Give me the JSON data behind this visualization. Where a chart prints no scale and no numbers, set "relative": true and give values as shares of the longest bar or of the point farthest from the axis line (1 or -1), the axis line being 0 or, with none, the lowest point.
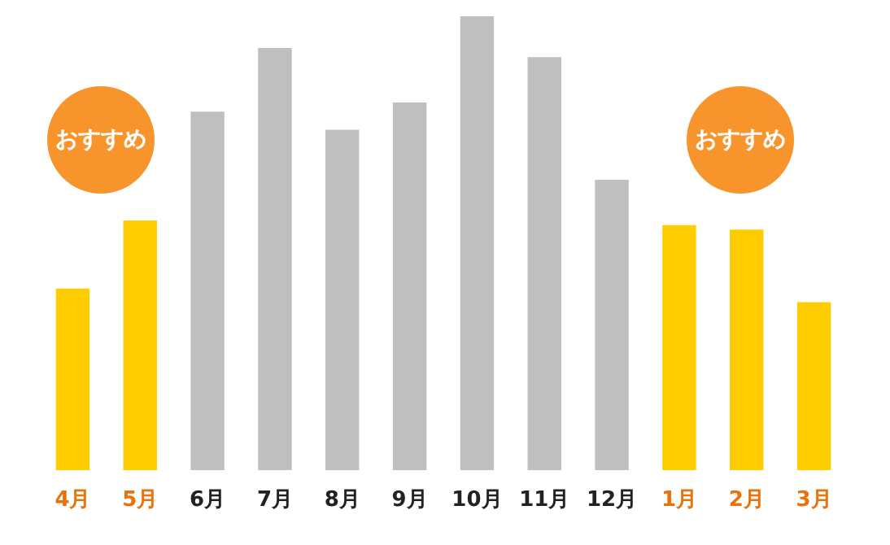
{
  "chart_data": {
    "type": "bar",
    "relative": true,
    "categories": [
      "4月",
      "5月",
      "6月",
      "7月",
      "8月",
      "9月",
      "10月",
      "11月",
      "12月",
      "1月",
      "2月",
      "3月"
    ],
    "values": [
      0.4,
      0.55,
      0.79,
      0.93,
      0.75,
      0.81,
      1,
      0.91,
      0.64,
      0.54,
      0.53,
      0.37
    ],
    "colors": [
      "#ffcc00",
      "#ffcc00",
      "#bfbfbf",
      "#bfbfbf",
      "#bfbfbf",
      "#bfbfbf",
      "#bfbfbf",
      "#bfbfbf",
      "#bfbfbf",
      "#ffcc00",
      "#ffcc00",
      "#ffcc00"
    ],
    "annotations": [
      "おすすめ",
      "おすすめ"
    ]
  }
}
